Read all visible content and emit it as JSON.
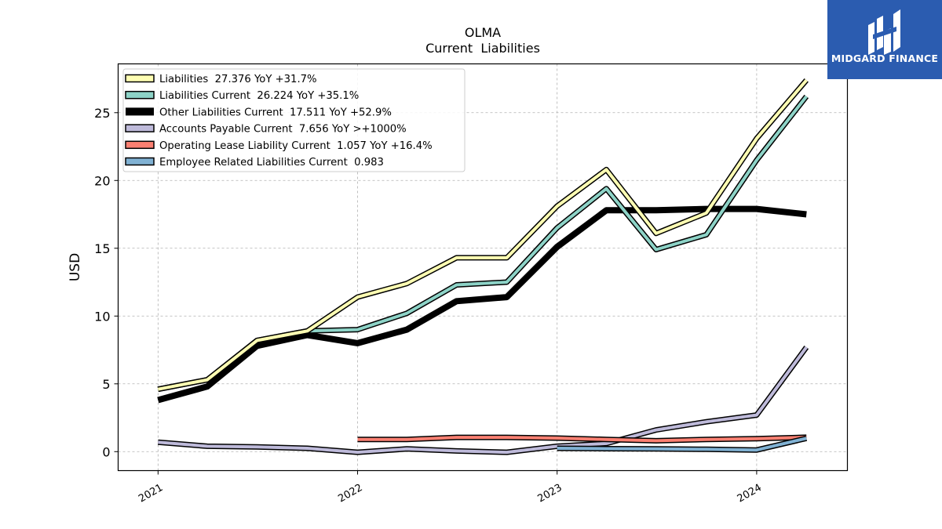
{
  "chart_data": {
    "type": "line",
    "title": "OLMA",
    "subtitle": "Current  Liabilities",
    "xlabel": "",
    "ylabel": "USD",
    "x_ticks": [
      "2021",
      "2022",
      "2023",
      "2024"
    ],
    "y_ticks": [
      0,
      5,
      10,
      15,
      20,
      25
    ],
    "xlim": [
      "2020-10-20",
      "2024-06-15"
    ],
    "ylim": [
      -1.4,
      28.6
    ],
    "grid": true,
    "legend_position": "top-left",
    "series": [
      {
        "name": "Liabilities",
        "legend_label": "Liabilities  27.376 YoY +31.7%",
        "color": "#ffffb3",
        "width": 4,
        "x": [
          "2021-01-01",
          "2021-04-01",
          "2021-07-01",
          "2021-10-01",
          "2022-01-01",
          "2022-04-01",
          "2022-07-01",
          "2022-10-01",
          "2023-01-01",
          "2023-04-01",
          "2023-07-01",
          "2023-10-01",
          "2024-01-01",
          "2024-04-01"
        ],
        "values": [
          4.6,
          5.3,
          8.2,
          8.9,
          11.4,
          12.4,
          14.3,
          14.3,
          18.1,
          20.8,
          16.1,
          17.6,
          23.1,
          27.4
        ]
      },
      {
        "name": "Liabilities Current",
        "legend_label": "Liabilities Current  26.224 YoY +35.1%",
        "color": "#8dd3c7",
        "width": 4,
        "x": [
          "2021-01-01",
          "2021-04-01",
          "2021-07-01",
          "2021-10-01",
          "2022-01-01",
          "2022-04-01",
          "2022-07-01",
          "2022-10-01",
          "2023-01-01",
          "2023-04-01",
          "2023-07-01",
          "2023-10-01",
          "2024-01-01",
          "2024-04-01"
        ],
        "values": [
          4.6,
          5.3,
          8.2,
          8.9,
          9.0,
          10.2,
          12.3,
          12.5,
          16.5,
          19.4,
          14.9,
          16.0,
          21.5,
          26.2
        ]
      },
      {
        "name": "Other Liabilities Current",
        "legend_label": "Other Liabilities Current  17.511 YoY +52.9%",
        "color": "#000000",
        "width": 8,
        "x": [
          "2021-01-01",
          "2021-04-01",
          "2021-07-01",
          "2021-10-01",
          "2022-01-01",
          "2022-04-01",
          "2022-07-01",
          "2022-10-01",
          "2023-01-01",
          "2023-04-01",
          "2023-07-01",
          "2023-10-01",
          "2024-01-01",
          "2024-04-01"
        ],
        "values": [
          3.8,
          4.8,
          7.8,
          8.6,
          8.0,
          9.0,
          11.1,
          11.4,
          15.1,
          17.8,
          17.8,
          17.9,
          17.9,
          17.5
        ]
      },
      {
        "name": "Accounts Payable Current",
        "legend_label": "Accounts Payable Current  7.656 YoY >+1000%",
        "color": "#bebada",
        "width": 4,
        "x": [
          "2021-01-01",
          "2021-04-01",
          "2021-07-01",
          "2021-10-01",
          "2022-01-01",
          "2022-04-01",
          "2022-07-01",
          "2022-10-01",
          "2023-01-01",
          "2023-04-01",
          "2023-07-01",
          "2023-10-01",
          "2024-01-01",
          "2024-04-01"
        ],
        "values": [
          0.7,
          0.4,
          0.35,
          0.25,
          -0.05,
          0.2,
          0.05,
          -0.05,
          0.4,
          0.6,
          1.6,
          2.2,
          2.7,
          7.7
        ]
      },
      {
        "name": "Operating Lease Liability Current",
        "legend_label": "Operating Lease Liability Current  1.057 YoY +16.4%",
        "color": "#fb8072",
        "width": 4,
        "x": [
          "2022-01-01",
          "2022-04-01",
          "2022-07-01",
          "2022-10-01",
          "2023-01-01",
          "2023-04-01",
          "2023-07-01",
          "2023-10-01",
          "2024-01-01",
          "2024-04-01"
        ],
        "values": [
          0.9,
          0.9,
          1.05,
          1.05,
          1.0,
          0.9,
          0.8,
          0.9,
          0.95,
          1.06
        ]
      },
      {
        "name": "Employee Related Liabilities Current",
        "legend_label": "Employee Related Liabilities Current  0.983",
        "color": "#80b1d3",
        "width": 4,
        "x": [
          "2023-01-01",
          "2023-04-01",
          "2023-07-01",
          "2023-10-01",
          "2024-01-01",
          "2024-04-01"
        ],
        "values": [
          0.25,
          0.22,
          0.2,
          0.17,
          0.12,
          0.98
        ]
      }
    ]
  },
  "logo": {
    "text": "MIDGARD FINANCE",
    "bg_color": "#2b5cb0"
  }
}
